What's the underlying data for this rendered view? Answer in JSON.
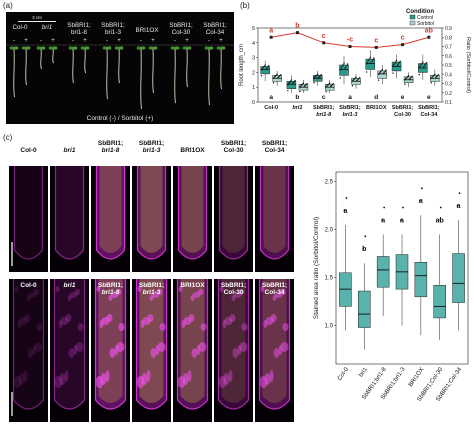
{
  "panels": {
    "a": "(a)",
    "b": "(b)",
    "c": "(c)"
  },
  "panel_a": {
    "scale_bar": "3 cm",
    "lines": [
      "Col-0",
      "bri1",
      "SbBRI1; bri1-8",
      "SbBRI1; bri1-3",
      "BRI1OX",
      "SbBRI1; Col-30",
      "SbBRI1; Col-34"
    ],
    "signs": [
      "-",
      "+"
    ],
    "caption": "Control (-) / Sorbitol (+)"
  },
  "chart_data": [
    {
      "type": "box",
      "title": "",
      "ylabel": "Root length_cm",
      "y2label": "Ratio (Sorbitol/Control)",
      "ylim": [
        0,
        5
      ],
      "y2lim": [
        0.1,
        0.9
      ],
      "yticks": [
        0,
        1,
        2,
        3,
        4,
        5
      ],
      "y2ticks": [
        0.1,
        0.2,
        0.3,
        0.4,
        0.5,
        0.6,
        0.7,
        0.8,
        0.9
      ],
      "categories": [
        "Col-0",
        "bri1",
        "SbBRI1; bri1-8",
        "SbBRI1; bri1-3",
        "BRI1OX",
        "SbBRI1; Col-30",
        "SbBRI1; Col-34"
      ],
      "legend": {
        "title": "Condition",
        "placement": "top-right",
        "entries": [
          "Control",
          "Sorbitol"
        ]
      },
      "colors": {
        "control": "#2a9a8c",
        "sorbitol": "#a8d6d0",
        "ratio_line": "#d83a2e"
      },
      "series": [
        {
          "name": "Control",
          "median": [
            2.2,
            1.2,
            1.6,
            2.2,
            2.6,
            2.4,
            2.3
          ],
          "q1": [
            1.9,
            0.9,
            1.4,
            1.8,
            2.2,
            2.1,
            2.0
          ],
          "q3": [
            2.4,
            1.4,
            1.8,
            2.5,
            2.9,
            2.7,
            2.6
          ],
          "min": [
            1.4,
            0.6,
            1.1,
            1.2,
            1.7,
            1.6,
            1.5
          ],
          "max": [
            2.8,
            1.8,
            2.1,
            3.1,
            3.5,
            3.2,
            3.2
          ]
        },
        {
          "name": "Sorbitol",
          "median": [
            1.6,
            1.0,
            1.0,
            1.4,
            1.9,
            1.5,
            1.6
          ],
          "q1": [
            1.4,
            0.8,
            0.8,
            1.2,
            1.6,
            1.3,
            1.4
          ],
          "q3": [
            1.8,
            1.2,
            1.2,
            1.6,
            2.1,
            1.7,
            1.8
          ],
          "min": [
            1.1,
            0.6,
            0.6,
            0.9,
            1.2,
            1.0,
            1.1
          ],
          "max": [
            2.1,
            1.5,
            1.5,
            1.9,
            2.5,
            2.0,
            2.2
          ]
        }
      ],
      "ratio": {
        "values": [
          0.8,
          0.85,
          0.74,
          0.7,
          0.69,
          0.72,
          0.8
        ],
        "letters": [
          "a",
          "b",
          "c",
          "-c",
          "c",
          "c",
          "ab"
        ]
      },
      "group_letters": [
        "a",
        "b",
        "c",
        "a",
        "d",
        "e",
        "e"
      ]
    },
    {
      "type": "box",
      "title": "",
      "ylabel": "Stained area ratio (Sorbitol/Control)",
      "ylim": [
        0.6,
        2.6
      ],
      "yticks": [
        1.0,
        1.5,
        2.0,
        2.5
      ],
      "categories": [
        "Col-0",
        "bri1",
        "SbBRI1;bri1-8",
        "SbBRI1;bri1-3",
        "BRI1OX",
        "SbBRI1;Col-30",
        "SbBRI1;Col-34"
      ],
      "colors": {
        "box": "#5ab2ad"
      },
      "median": [
        1.38,
        1.12,
        1.58,
        1.56,
        1.52,
        1.2,
        1.44
      ],
      "q1": [
        1.2,
        0.98,
        1.4,
        1.38,
        1.3,
        1.08,
        1.24
      ],
      "q3": [
        1.55,
        1.36,
        1.72,
        1.74,
        1.66,
        1.42,
        1.75
      ],
      "min": [
        0.95,
        0.75,
        1.1,
        1.0,
        0.9,
        0.85,
        0.95
      ],
      "max": [
        2.05,
        1.65,
        1.95,
        1.95,
        2.15,
        1.95,
        2.1
      ],
      "letters": [
        "a",
        "b",
        "a",
        "a",
        "a",
        "ab",
        "a"
      ]
    }
  ],
  "panel_c": {
    "columns": [
      "Col-0",
      "bri1",
      "SbBRI1; bri1-8",
      "SbBRI1; bri1-3",
      "BRI1OX",
      "SbBRI1; Col-30",
      "SbBRI1; Col-34"
    ],
    "top_label_color": "#111111",
    "bottom_label_color": "#ffffff"
  }
}
